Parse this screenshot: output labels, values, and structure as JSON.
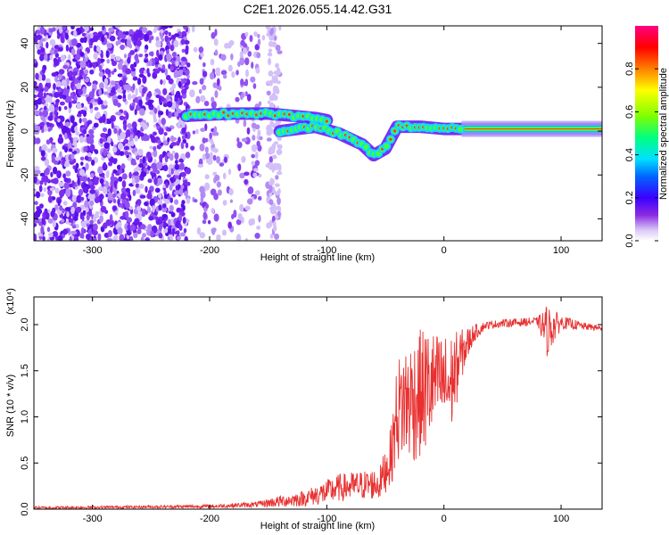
{
  "title": "C2E1.2026.055.14.42.G31",
  "chart_data": [
    {
      "type": "heatmap",
      "xlabel": "Height of straight line (km)",
      "ylabel": "Frequency (Hz)",
      "xlim": [
        -350,
        135
      ],
      "ylim": [
        -50,
        48
      ],
      "xticks": [
        -300,
        -200,
        -100,
        0,
        100
      ],
      "yticks": [
        -40,
        -20,
        0,
        20,
        40
      ],
      "colorbar": {
        "label": "Normalized spectral amplitude",
        "range": [
          0.0,
          1.0
        ],
        "ticks": [
          0.0,
          0.2,
          0.4,
          0.6,
          0.8
        ],
        "tick_labels": [
          "0.0",
          "0.2",
          "0.4",
          "0.6",
          "0.8"
        ]
      },
      "signal_track": {
        "upper_branch": [
          {
            "x": -220,
            "y": 7
          },
          {
            "x": -180,
            "y": 8
          },
          {
            "x": -150,
            "y": 8
          },
          {
            "x": -130,
            "y": 7
          },
          {
            "x": -110,
            "y": 6
          },
          {
            "x": -100,
            "y": 5
          }
        ],
        "lower_branch": [
          {
            "x": -140,
            "y": 0
          },
          {
            "x": -110,
            "y": 2
          },
          {
            "x": -90,
            "y": -1
          },
          {
            "x": -70,
            "y": -6
          },
          {
            "x": -60,
            "y": -11
          },
          {
            "x": -50,
            "y": -8
          },
          {
            "x": -40,
            "y": 2
          },
          {
            "x": -20,
            "y": 2
          },
          {
            "x": 0,
            "y": 1
          },
          {
            "x": 50,
            "y": 1
          },
          {
            "x": 135,
            "y": 1
          }
        ]
      }
    },
    {
      "type": "line",
      "xlabel": "Height of straight line (km)",
      "ylabel": "SNR (10 * v/v)",
      "y_multiplier": "(x10⁴)",
      "xlim": [
        -350,
        135
      ],
      "ylim": [
        0,
        2.3
      ],
      "xticks": [
        -300,
        -200,
        -100,
        0,
        100
      ],
      "yticks": [
        0.0,
        0.5,
        1.0,
        1.5,
        2.0
      ],
      "ytick_labels": [
        "0.0",
        "0.5",
        "1.0",
        "1.5",
        "2.0"
      ],
      "series": [
        {
          "name": "SNR",
          "color": "#e83030",
          "envelope": [
            {
              "x": -350,
              "low": 0.0,
              "high": 0.03
            },
            {
              "x": -250,
              "low": 0.01,
              "high": 0.04
            },
            {
              "x": -200,
              "low": 0.01,
              "high": 0.05
            },
            {
              "x": -160,
              "low": 0.02,
              "high": 0.08
            },
            {
              "x": -140,
              "low": 0.02,
              "high": 0.15
            },
            {
              "x": -120,
              "low": 0.03,
              "high": 0.2
            },
            {
              "x": -100,
              "low": 0.05,
              "high": 0.32
            },
            {
              "x": -90,
              "low": 0.08,
              "high": 0.38
            },
            {
              "x": -70,
              "low": 0.1,
              "high": 0.42
            },
            {
              "x": -55,
              "low": 0.1,
              "high": 0.45
            },
            {
              "x": -45,
              "low": 0.25,
              "high": 0.9
            },
            {
              "x": -40,
              "low": 0.5,
              "high": 1.6
            },
            {
              "x": -35,
              "low": 0.5,
              "high": 1.8
            },
            {
              "x": -25,
              "low": 0.5,
              "high": 1.9
            },
            {
              "x": -15,
              "low": 0.6,
              "high": 2.0
            },
            {
              "x": -5,
              "low": 0.9,
              "high": 1.9
            },
            {
              "x": 5,
              "low": 0.75,
              "high": 1.9
            },
            {
              "x": 15,
              "low": 1.4,
              "high": 1.95
            },
            {
              "x": 25,
              "low": 1.8,
              "high": 2.0
            },
            {
              "x": 35,
              "low": 1.95,
              "high": 2.03
            },
            {
              "x": 50,
              "low": 1.97,
              "high": 2.06
            },
            {
              "x": 80,
              "low": 1.99,
              "high": 2.08
            },
            {
              "x": 88,
              "low": 1.65,
              "high": 2.22
            },
            {
              "x": 100,
              "low": 1.95,
              "high": 2.1
            },
            {
              "x": 120,
              "low": 1.94,
              "high": 2.02
            },
            {
              "x": 135,
              "low": 1.93,
              "high": 1.99
            }
          ]
        }
      ]
    }
  ]
}
